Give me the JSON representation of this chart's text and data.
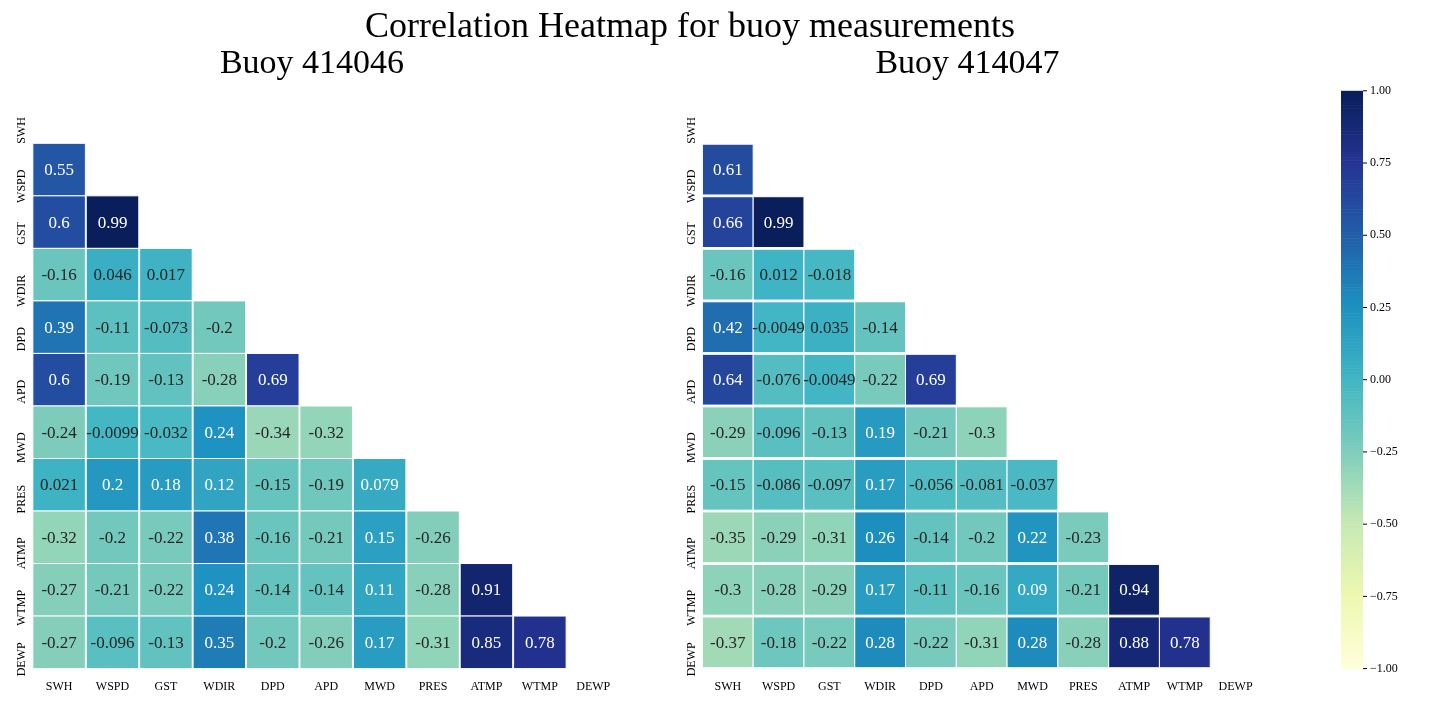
{
  "chart_data": [
    {
      "type": "heatmap",
      "title": "Correlation Heatmap for buoy measurements",
      "subtitle": "Buoy 414046",
      "categories": [
        "SWH",
        "WSPD",
        "GST",
        "WDIR",
        "DPD",
        "APD",
        "MWD",
        "PRES",
        "ATMP",
        "WTMP",
        "DEWP"
      ],
      "y_categories": [
        "SWH",
        "WSPD",
        "GST",
        "WDIR",
        "DPD",
        "APD",
        "MWD",
        "PRES",
        "ATMP",
        "WTMP",
        "DEWP"
      ],
      "cells": [
        [
          null,
          null,
          null,
          null,
          null,
          null,
          null,
          null,
          null,
          null,
          null
        ],
        [
          0.55,
          null,
          null,
          null,
          null,
          null,
          null,
          null,
          null,
          null,
          null
        ],
        [
          0.6,
          0.99,
          null,
          null,
          null,
          null,
          null,
          null,
          null,
          null,
          null
        ],
        [
          -0.16,
          0.046,
          0.017,
          null,
          null,
          null,
          null,
          null,
          null,
          null,
          null
        ],
        [
          0.39,
          -0.11,
          -0.073,
          -0.2,
          null,
          null,
          null,
          null,
          null,
          null,
          null
        ],
        [
          0.6,
          -0.19,
          -0.13,
          -0.28,
          0.69,
          null,
          null,
          null,
          null,
          null,
          null
        ],
        [
          -0.24,
          -0.0099,
          -0.032,
          0.24,
          -0.34,
          -0.32,
          null,
          null,
          null,
          null,
          null
        ],
        [
          0.021,
          0.2,
          0.18,
          0.12,
          -0.15,
          -0.19,
          0.079,
          null,
          null,
          null,
          null
        ],
        [
          -0.32,
          -0.2,
          -0.22,
          0.38,
          -0.16,
          -0.21,
          0.15,
          -0.26,
          null,
          null,
          null
        ],
        [
          -0.27,
          -0.21,
          -0.22,
          0.24,
          -0.14,
          -0.14,
          0.11,
          -0.28,
          0.91,
          null,
          null
        ],
        [
          -0.27,
          -0.096,
          -0.13,
          0.35,
          -0.2,
          -0.26,
          0.17,
          -0.31,
          0.85,
          0.78,
          null
        ]
      ],
      "data_labels": true
    },
    {
      "type": "heatmap",
      "subtitle": "Buoy 414047",
      "categories": [
        "SWH",
        "WSPD",
        "GST",
        "WDIR",
        "DPD",
        "APD",
        "MWD",
        "PRES",
        "ATMP",
        "WTMP",
        "DEWP"
      ],
      "y_categories": [
        "SWH",
        "WSPD",
        "GST",
        "WDIR",
        "DPD",
        "APD",
        "MWD",
        "PRES",
        "ATMP",
        "WTMP",
        "DEWP"
      ],
      "cells": [
        [
          null,
          null,
          null,
          null,
          null,
          null,
          null,
          null,
          null,
          null,
          null
        ],
        [
          0.61,
          null,
          null,
          null,
          null,
          null,
          null,
          null,
          null,
          null,
          null
        ],
        [
          0.66,
          0.99,
          null,
          null,
          null,
          null,
          null,
          null,
          null,
          null,
          null
        ],
        [
          -0.16,
          0.012,
          -0.018,
          null,
          null,
          null,
          null,
          null,
          null,
          null,
          null
        ],
        [
          0.42,
          -0.0049,
          0.035,
          -0.14,
          null,
          null,
          null,
          null,
          null,
          null,
          null
        ],
        [
          0.64,
          -0.076,
          -0.0049,
          -0.22,
          0.69,
          null,
          null,
          null,
          null,
          null,
          null
        ],
        [
          -0.29,
          -0.096,
          -0.13,
          0.19,
          -0.21,
          -0.3,
          null,
          null,
          null,
          null,
          null
        ],
        [
          -0.15,
          -0.086,
          -0.097,
          0.17,
          -0.056,
          -0.081,
          -0.037,
          null,
          null,
          null,
          null
        ],
        [
          -0.35,
          -0.29,
          -0.31,
          0.26,
          -0.14,
          -0.2,
          0.22,
          -0.23,
          null,
          null,
          null
        ],
        [
          -0.3,
          -0.28,
          -0.29,
          0.17,
          -0.11,
          -0.16,
          0.09,
          -0.21,
          0.94,
          null,
          null
        ],
        [
          -0.37,
          -0.18,
          -0.22,
          0.28,
          -0.22,
          -0.31,
          0.28,
          -0.28,
          0.88,
          0.78,
          null
        ]
      ],
      "clim": [
        -1,
        1
      ],
      "cticks": [
        {
          "value": 1,
          "label": "1.00"
        },
        {
          "value": 0.75,
          "label": "0.75"
        },
        {
          "value": 0.5,
          "label": "0.50"
        },
        {
          "value": 0.25,
          "label": "0.25"
        },
        {
          "value": 0,
          "label": "0.00"
        },
        {
          "value": -0.25,
          "label": "−0.25"
        },
        {
          "value": -0.5,
          "label": "−0.50"
        },
        {
          "value": -0.75,
          "label": "−0.75"
        },
        {
          "value": -1,
          "label": "−1.00"
        }
      ],
      "data_labels": true
    }
  ]
}
